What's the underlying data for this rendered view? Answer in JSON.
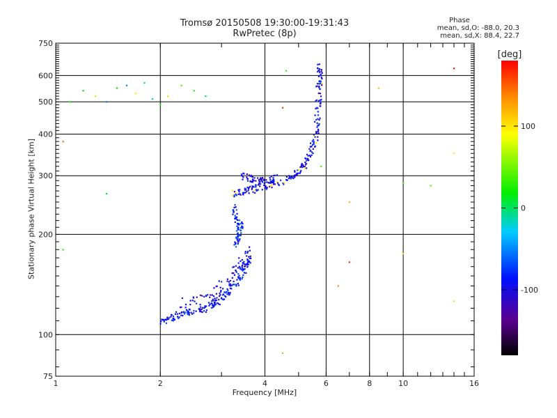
{
  "chart_data": {
    "type": "scatter",
    "title": "Tromsø 20150508 19:30:00-19:31:43",
    "subtitle": "RwPretec (8p)",
    "xlabel": "Frequency [MHz]",
    "ylabel": "Stationary phase Virtual Height [km]",
    "x_scale": "log",
    "y_scale": "log",
    "xlim": [
      1,
      16
    ],
    "ylim": [
      75,
      750
    ],
    "x_ticks": [
      "1",
      "2",
      "4",
      "6",
      "8",
      "10",
      "16"
    ],
    "y_ticks": [
      "75",
      "100",
      "200",
      "300",
      "400",
      "500",
      "600",
      "750"
    ],
    "grid": true,
    "phase_stats": {
      "header": "Phase",
      "o_mode": "mean, sd,O: -88.0, 20.3",
      "x_mode": "mean, sd,X:  88.4, 22.7"
    },
    "colorbar": {
      "label": "[deg]",
      "range": [
        -180,
        180
      ],
      "ticks": [
        "100",
        "0",
        "-100"
      ]
    },
    "traces": [
      {
        "name_hint": "E/F1 low trace",
        "phase": -90,
        "points": [
          [
            2.0,
            108
          ],
          [
            2.1,
            111
          ],
          [
            2.2,
            114
          ],
          [
            2.35,
            116
          ],
          [
            2.5,
            117
          ],
          [
            2.7,
            120
          ],
          [
            2.85,
            124
          ],
          [
            3.0,
            128
          ],
          [
            3.15,
            134
          ],
          [
            3.3,
            142
          ],
          [
            3.45,
            152
          ],
          [
            3.55,
            162
          ],
          [
            3.6,
            170
          ]
        ]
      },
      {
        "name_hint": "E/F1 low trace (scatter band)",
        "phase": -95,
        "points": [
          [
            2.3,
            121
          ],
          [
            2.55,
            124
          ],
          [
            2.8,
            131
          ],
          [
            3.0,
            138
          ],
          [
            3.2,
            146
          ],
          [
            3.35,
            156
          ],
          [
            3.5,
            168
          ],
          [
            3.6,
            178
          ]
        ]
      },
      {
        "name_hint": "cusp",
        "phase": -80,
        "points": [
          [
            3.3,
            185
          ],
          [
            3.35,
            195
          ],
          [
            3.37,
            205
          ],
          [
            3.4,
            215
          ],
          [
            3.3,
            225
          ],
          [
            3.25,
            240
          ]
        ]
      },
      {
        "name_hint": "F2 mid trace",
        "phase": -95,
        "points": [
          [
            3.2,
            265
          ],
          [
            3.4,
            268
          ],
          [
            3.6,
            272
          ],
          [
            3.8,
            275
          ],
          [
            4.0,
            280
          ],
          [
            4.2,
            283
          ],
          [
            4.5,
            290
          ],
          [
            4.8,
            300
          ],
          [
            5.0,
            310
          ],
          [
            5.2,
            325
          ],
          [
            5.4,
            345
          ],
          [
            5.5,
            370
          ],
          [
            5.6,
            400
          ],
          [
            5.65,
            450
          ],
          [
            5.7,
            500
          ],
          [
            5.72,
            550
          ],
          [
            5.75,
            600
          ],
          [
            5.76,
            640
          ]
        ]
      },
      {
        "name_hint": "F2 upper branch",
        "phase": -100,
        "points": [
          [
            3.4,
            300
          ],
          [
            3.6,
            295
          ],
          [
            3.8,
            290
          ],
          [
            4.0,
            290
          ],
          [
            4.3,
            295
          ]
        ]
      },
      {
        "name_hint": "high-altitude spread (mixed phase)",
        "phase": 60,
        "points": [
          [
            1.1,
            500
          ],
          [
            1.2,
            540
          ],
          [
            1.3,
            520
          ],
          [
            1.4,
            500
          ],
          [
            1.5,
            550
          ],
          [
            1.6,
            560
          ],
          [
            1.7,
            530
          ],
          [
            1.8,
            570
          ],
          [
            1.9,
            510
          ],
          [
            2.0,
            490
          ],
          [
            2.1,
            520
          ],
          [
            2.3,
            560
          ],
          [
            2.5,
            540
          ],
          [
            2.7,
            520
          ]
        ]
      },
      {
        "name_hint": "scattered noise",
        "phase": 130,
        "points": [
          [
            1.05,
            380
          ],
          [
            1.05,
            180
          ],
          [
            1.4,
            265
          ],
          [
            4.5,
            480
          ],
          [
            4.6,
            620
          ],
          [
            5.8,
            320
          ],
          [
            6.5,
            140
          ],
          [
            7.0,
            250
          ],
          [
            10.0,
            285
          ],
          [
            10.0,
            175
          ],
          [
            12.0,
            280
          ],
          [
            14.0,
            350
          ],
          [
            14.0,
            126
          ],
          [
            14.0,
            630
          ],
          [
            4.5,
            88
          ],
          [
            7.0,
            165
          ],
          [
            8.5,
            550
          ]
        ]
      }
    ]
  }
}
